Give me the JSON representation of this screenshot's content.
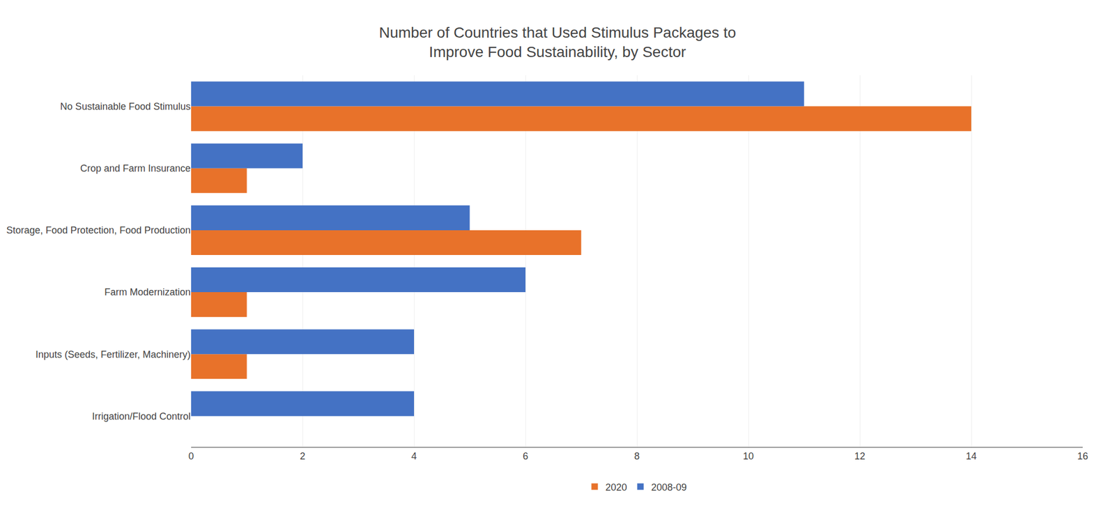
{
  "chart_data": {
    "type": "bar",
    "orientation": "horizontal",
    "title": "Number of Countries that Used Stimulus Packages to\nImprove Food Sustainability, by Sector",
    "categories": [
      "Irrigation/Flood Control",
      "Inputs (Seeds, Fertilizer, Machinery)",
      "Farm Modernization",
      "Storage, Food Protection, Food Production",
      "Crop and Farm Insurance",
      "No Sustainable Food Stimulus"
    ],
    "series": [
      {
        "name": "2020",
        "color": "#E8722A",
        "values": [
          0,
          1,
          1,
          7,
          1,
          14
        ]
      },
      {
        "name": "2008-09",
        "color": "#4472C4",
        "values": [
          4,
          4,
          6,
          5,
          2,
          11
        ]
      }
    ],
    "xlim": [
      0,
      16
    ],
    "xticks": [
      0,
      2,
      4,
      6,
      8,
      10,
      12,
      14,
      16
    ],
    "grid": true,
    "legend": "bottom"
  }
}
